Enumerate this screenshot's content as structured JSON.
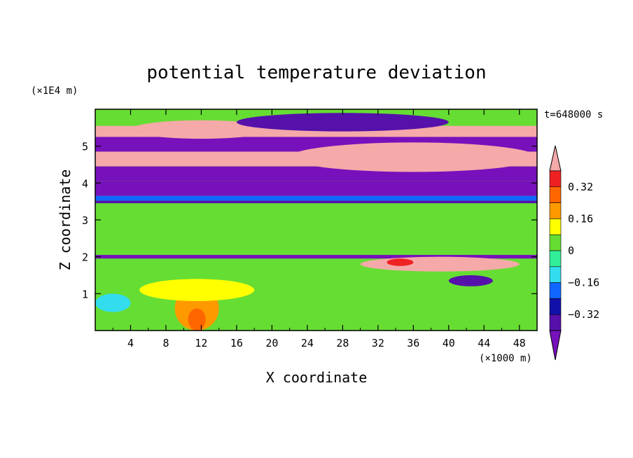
{
  "chart_data": {
    "type": "heatmap",
    "title": "potential temperature deviation",
    "xlabel": "X coordinate",
    "ylabel": "Z coordinate",
    "x_unit": "(×1000 m)",
    "y_unit": "(×1E4 m)",
    "time_label": "t=648000 s",
    "xlim": [
      0,
      50
    ],
    "ylim": [
      0,
      6
    ],
    "x_ticks": [
      4,
      8,
      12,
      16,
      20,
      24,
      28,
      32,
      36,
      40,
      44,
      48
    ],
    "y_ticks": [
      1,
      2,
      3,
      4,
      5
    ],
    "colorbar": {
      "levels": [
        -0.4,
        -0.32,
        -0.24,
        -0.16,
        -0.08,
        0,
        0.08,
        0.16,
        0.24,
        0.32,
        0.4
      ],
      "labels": [
        "0.32",
        "0.16",
        "0",
        "−0.16",
        "−0.32"
      ],
      "label_values": [
        0.32,
        0.16,
        0,
        -0.16,
        -0.32
      ],
      "colors": [
        "#f5a9a9",
        "#ee2222",
        "#ff6600",
        "#ff9900",
        "#ffff00",
        "#66dd33",
        "#33ee99",
        "#33ddee",
        "#1166ff",
        "#1111aa",
        "#5511aa",
        "#7711bb"
      ]
    },
    "bands": [
      {
        "zmin": 5.55,
        "zmax": 6.0,
        "value": 0.05
      },
      {
        "zmin": 5.25,
        "zmax": 5.55,
        "value": 0.45
      },
      {
        "zmin": 4.85,
        "zmax": 5.25,
        "value": -0.45
      },
      {
        "zmin": 4.45,
        "zmax": 4.85,
        "value": 0.45
      },
      {
        "zmin": 4.05,
        "zmax": 4.45,
        "value": -0.45
      },
      {
        "zmin": 3.65,
        "zmax": 4.05,
        "value": -0.45
      },
      {
        "zmin": 3.52,
        "zmax": 3.65,
        "value": -0.2
      },
      {
        "zmin": 3.45,
        "zmax": 3.52,
        "value": -0.36
      },
      {
        "zmin": 2.2,
        "zmax": 3.45,
        "value": 0.05
      },
      {
        "zmin": 1.95,
        "zmax": 2.05,
        "value": -0.45
      },
      {
        "zmin": 0.0,
        "zmax": 1.95,
        "value": 0.06
      }
    ],
    "features": [
      {
        "x": [
          4,
          20
        ],
        "z": [
          5.2,
          5.7
        ],
        "value": 0.45
      },
      {
        "x": [
          22,
          50
        ],
        "z": [
          4.3,
          5.1
        ],
        "value": 0.45
      },
      {
        "x": [
          16,
          40
        ],
        "z": [
          5.4,
          5.9
        ],
        "value": -0.36
      },
      {
        "x": [
          9,
          14
        ],
        "z": [
          0.0,
          1.2
        ],
        "value": 0.2
      },
      {
        "x": [
          10.5,
          12.5
        ],
        "z": [
          0.0,
          0.6
        ],
        "value": 0.28
      },
      {
        "x": [
          5,
          18
        ],
        "z": [
          0.8,
          1.4
        ],
        "value": 0.12
      },
      {
        "x": [
          30,
          48
        ],
        "z": [
          1.6,
          2.0
        ],
        "value": 0.4
      },
      {
        "x": [
          33,
          36
        ],
        "z": [
          1.75,
          1.95
        ],
        "value": 0.33
      },
      {
        "x": [
          40,
          45
        ],
        "z": [
          1.2,
          1.5
        ],
        "value": -0.33
      },
      {
        "x": [
          0,
          4
        ],
        "z": [
          0.5,
          1.0
        ],
        "value": -0.1
      }
    ]
  }
}
